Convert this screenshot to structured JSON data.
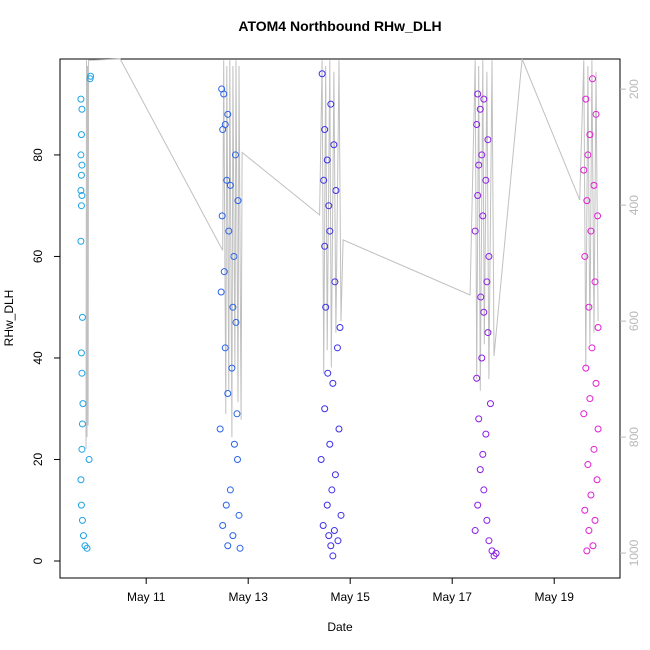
{
  "chart_data": {
    "type": "scatter",
    "title": "ATOM4 Northbound RHw_DLH",
    "x_label": "Date",
    "y_label": "RHw_DLH",
    "xlim": [
      9.31,
      20.29
    ],
    "xticks": [
      {
        "value": 11,
        "label": "May 11"
      },
      {
        "value": 13,
        "label": "May 13"
      },
      {
        "value": 15,
        "label": "May 15"
      },
      {
        "value": 17,
        "label": "May 17"
      },
      {
        "value": 19,
        "label": "May 19"
      }
    ],
    "ylim": [
      -3.35,
      98.9
    ],
    "yticks": [
      0,
      20,
      40,
      60,
      80
    ],
    "y2lim": [
      1043,
      148
    ],
    "y2ticks": [
      200,
      400,
      600,
      800,
      1000
    ],
    "series": [
      {
        "color": "#1ea3e4",
        "x": [
          9.72,
          9.74,
          9.73,
          9.72,
          9.74,
          9.73,
          9.72,
          9.74,
          9.73,
          9.72,
          9.75,
          9.73,
          9.74,
          9.76,
          9.75,
          9.74,
          9.72,
          9.73,
          9.75,
          9.77,
          9.8,
          9.84,
          9.9,
          9.91,
          9.88
        ],
        "values": [
          91,
          89,
          84,
          80,
          78,
          76,
          73,
          72,
          70,
          63,
          48,
          41,
          37,
          31,
          27,
          22,
          16,
          11,
          8,
          5,
          3,
          2.5,
          95,
          95.5,
          20
        ]
      },
      {
        "color": "#2a62e6",
        "x": [
          12.48,
          12.52,
          12.6,
          12.55,
          12.5,
          12.75,
          12.58,
          12.65,
          12.8,
          12.49,
          12.62,
          12.72,
          12.53,
          12.47,
          12.7,
          12.76,
          12.55,
          12.68,
          12.6,
          12.78,
          12.45,
          12.73,
          12.79,
          12.65,
          12.57,
          12.82,
          12.5,
          12.7,
          12.6,
          12.84
        ],
        "values": [
          93,
          92,
          88,
          86,
          85,
          80,
          75,
          74,
          71,
          68,
          65,
          60,
          57,
          53,
          50,
          47,
          42,
          38,
          33,
          29,
          26,
          23,
          20,
          14,
          11,
          9,
          7,
          5,
          3,
          2.5
        ]
      },
      {
        "color": "#3c2ee6",
        "x": [
          14.45,
          14.62,
          14.5,
          14.68,
          14.55,
          14.48,
          14.72,
          14.58,
          14.6,
          14.5,
          14.7,
          14.52,
          14.8,
          14.75,
          14.56,
          14.66,
          14.5,
          14.78,
          14.6,
          14.43,
          14.71,
          14.64,
          14.55,
          14.82,
          14.47,
          14.69,
          14.58,
          14.76,
          14.62,
          14.66
        ],
        "values": [
          96,
          90,
          85,
          82,
          79,
          75,
          73,
          70,
          65,
          62,
          55,
          50,
          46,
          42,
          37,
          35,
          30,
          26,
          23,
          20,
          17,
          14,
          11,
          9,
          7,
          6,
          5,
          4,
          3,
          1
        ]
      },
      {
        "color": "#8a1ee6",
        "x": [
          17.5,
          17.62,
          17.55,
          17.48,
          17.7,
          17.58,
          17.52,
          17.66,
          17.5,
          17.6,
          17.45,
          17.72,
          17.68,
          17.56,
          17.62,
          17.7,
          17.58,
          17.48,
          17.75,
          17.52,
          17.66,
          17.6,
          17.55,
          17.62,
          17.5,
          17.68,
          17.45,
          17.72,
          17.78,
          17.82,
          17.86
        ],
        "values": [
          92,
          91,
          89,
          86,
          83,
          80,
          78,
          75,
          72,
          68,
          65,
          60,
          55,
          52,
          49,
          45,
          40,
          36,
          31,
          28,
          25,
          21,
          18,
          14,
          11,
          8,
          6,
          4,
          2,
          1,
          1.5
        ]
      },
      {
        "color": "#e01ed2",
        "x": [
          19.75,
          19.62,
          19.82,
          19.7,
          19.66,
          19.58,
          19.78,
          19.64,
          19.85,
          19.72,
          19.6,
          19.8,
          19.68,
          19.86,
          19.74,
          19.62,
          19.82,
          19.7,
          19.58,
          19.86,
          19.78,
          19.66,
          19.84,
          19.72,
          19.6,
          19.8,
          19.68,
          19.76,
          19.64
        ],
        "values": [
          95,
          91,
          88,
          84,
          80,
          77,
          74,
          71,
          68,
          65,
          60,
          55,
          50,
          46,
          42,
          38,
          35,
          32,
          29,
          26,
          22,
          19,
          16,
          13,
          10,
          8,
          6,
          3,
          2
        ]
      },
      {
        "color": "#c0c0c0",
        "axis": "y2",
        "line": true,
        "x": [
          9.82,
          9.83,
          9.84,
          9.85,
          9.86,
          9.87,
          10.49,
          12.5,
          12.52,
          12.56,
          12.58,
          12.62,
          12.64,
          12.68,
          12.7,
          12.74,
          12.76,
          12.8,
          12.82,
          12.86,
          12.88,
          14.4,
          14.45,
          14.48,
          14.52,
          14.55,
          14.6,
          14.63,
          14.68,
          14.72,
          14.78,
          14.82,
          14.86,
          17.35,
          17.45,
          17.48,
          17.52,
          17.55,
          17.6,
          17.63,
          17.68,
          17.72,
          17.78,
          17.82,
          18.37,
          19.5,
          19.58,
          19.62,
          19.66,
          19.7,
          19.74,
          19.78,
          19.82,
          19.86
        ],
        "values": [
          820,
          150,
          800,
          160,
          780,
          150,
          148,
          478,
          150,
          760,
          160,
          720,
          150,
          800,
          160,
          680,
          150,
          740,
          160,
          770,
          309,
          417,
          150,
          690,
          160,
          650,
          150,
          680,
          170,
          620,
          150,
          600,
          460,
          555,
          150,
          700,
          160,
          720,
          150,
          640,
          170,
          700,
          150,
          660,
          148,
          391,
          150,
          680,
          160,
          640,
          150,
          620,
          170,
          600
        ]
      }
    ]
  }
}
